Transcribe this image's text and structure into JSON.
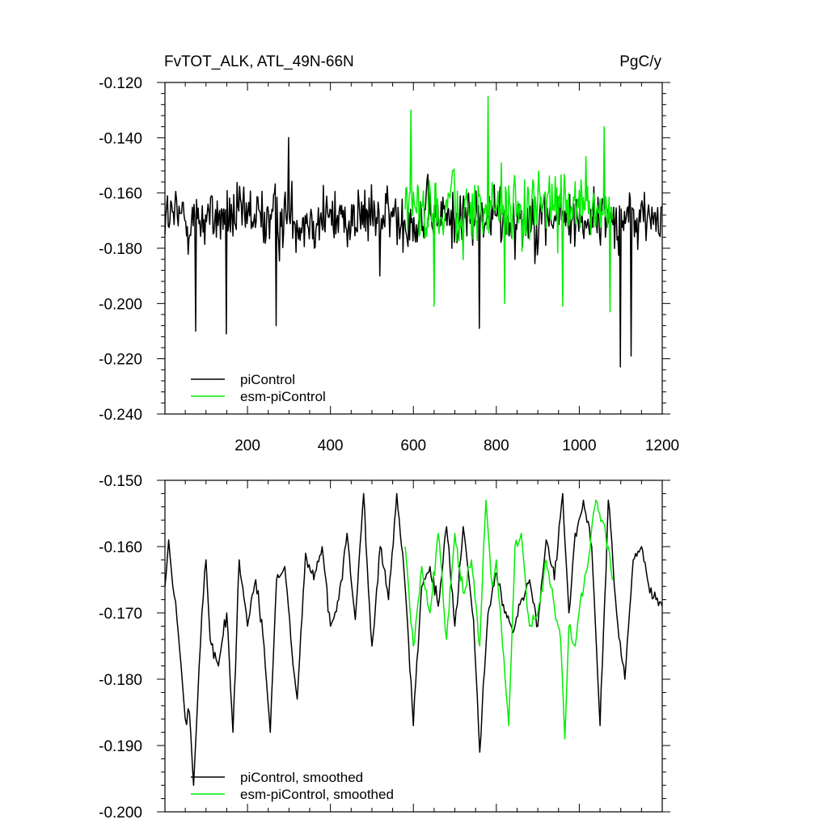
{
  "header": {
    "title": "FvTOT_ALK, ATL_49N-66N",
    "units": "PgC/y"
  },
  "chart_data": [
    {
      "type": "line",
      "title": "FvTOT_ALK, ATL_49N-66N",
      "units": "PgC/y",
      "xlim": [
        1,
        1200
      ],
      "ylim": [
        -0.24,
        -0.12
      ],
      "xticks": [
        200,
        400,
        600,
        800,
        1000,
        1200
      ],
      "xtick_labels": [
        "200",
        "400",
        "600",
        "800",
        "1000",
        "1200"
      ],
      "yticks": [
        -0.12,
        -0.14,
        -0.16,
        -0.18,
        -0.2,
        -0.22,
        -0.24
      ],
      "ytick_labels": [
        "-0.120",
        "-0.140",
        "-0.160",
        "-0.180",
        "-0.200",
        "-0.220",
        "-0.240"
      ],
      "legend_position": "bottom-left",
      "series": [
        {
          "name": "piControl",
          "color": "#000000",
          "x_start": 1,
          "x_end": 1200,
          "mean": -0.169,
          "spread": 0.011,
          "extremes": [
            [
              75,
              -0.21
            ],
            [
              150,
              -0.211
            ],
            [
              270,
              -0.208
            ],
            [
              300,
              -0.14
            ],
            [
              760,
              -0.209
            ],
            [
              1100,
              -0.223
            ],
            [
              1125,
              -0.219
            ],
            [
              520,
              -0.19
            ]
          ]
        },
        {
          "name": "esm-piControl",
          "color": "#00ee00",
          "x_start": 580,
          "x_end": 1080,
          "mean": -0.166,
          "spread": 0.012,
          "extremes": [
            [
              595,
              -0.13
            ],
            [
              780,
              -0.125
            ],
            [
              650,
              -0.201
            ],
            [
              820,
              -0.2
            ],
            [
              960,
              -0.201
            ],
            [
              1075,
              -0.203
            ],
            [
              1060,
              -0.136
            ]
          ]
        }
      ]
    },
    {
      "type": "line",
      "xlim": [
        1,
        1200
      ],
      "ylim": [
        -0.2,
        -0.15
      ],
      "xticks": [
        200,
        400,
        600,
        800,
        1000,
        1200
      ],
      "yticks": [
        -0.15,
        -0.16,
        -0.17,
        -0.18,
        -0.19,
        -0.2
      ],
      "ytick_labels": [
        "-0.150",
        "-0.160",
        "-0.170",
        "-0.180",
        "-0.190",
        "-0.200"
      ],
      "legend_position": "bottom-left",
      "series": [
        {
          "name": "piControl, smoothed",
          "color": "#000000",
          "x_start": 1,
          "x_end": 1200,
          "points": [
            [
              1,
              -0.166
            ],
            [
              10,
              -0.159
            ],
            [
              20,
              -0.166
            ],
            [
              30,
              -0.171
            ],
            [
              40,
              -0.178
            ],
            [
              50,
              -0.186
            ],
            [
              60,
              -0.185
            ],
            [
              70,
              -0.196
            ],
            [
              80,
              -0.183
            ],
            [
              90,
              -0.17
            ],
            [
              100,
              -0.162
            ],
            [
              110,
              -0.174
            ],
            [
              130,
              -0.178
            ],
            [
              150,
              -0.17
            ],
            [
              165,
              -0.188
            ],
            [
              180,
              -0.162
            ],
            [
              200,
              -0.172
            ],
            [
              220,
              -0.165
            ],
            [
              240,
              -0.175
            ],
            [
              255,
              -0.188
            ],
            [
              270,
              -0.165
            ],
            [
              290,
              -0.163
            ],
            [
              310,
              -0.178
            ],
            [
              320,
              -0.183
            ],
            [
              340,
              -0.161
            ],
            [
              360,
              -0.165
            ],
            [
              380,
              -0.16
            ],
            [
              400,
              -0.172
            ],
            [
              420,
              -0.168
            ],
            [
              440,
              -0.158
            ],
            [
              460,
              -0.171
            ],
            [
              480,
              -0.152
            ],
            [
              500,
              -0.175
            ],
            [
              520,
              -0.16
            ],
            [
              540,
              -0.168
            ],
            [
              560,
              -0.152
            ],
            [
              580,
              -0.166
            ],
            [
              600,
              -0.187
            ],
            [
              620,
              -0.166
            ],
            [
              640,
              -0.163
            ],
            [
              660,
              -0.169
            ],
            [
              680,
              -0.157
            ],
            [
              700,
              -0.172
            ],
            [
              720,
              -0.157
            ],
            [
              745,
              -0.171
            ],
            [
              760,
              -0.191
            ],
            [
              780,
              -0.17
            ],
            [
              800,
              -0.164
            ],
            [
              820,
              -0.17
            ],
            [
              840,
              -0.173
            ],
            [
              860,
              -0.168
            ],
            [
              880,
              -0.165
            ],
            [
              900,
              -0.172
            ],
            [
              920,
              -0.159
            ],
            [
              940,
              -0.165
            ],
            [
              960,
              -0.152
            ],
            [
              975,
              -0.17
            ],
            [
              990,
              -0.158
            ],
            [
              1010,
              -0.153
            ],
            [
              1030,
              -0.16
            ],
            [
              1050,
              -0.187
            ],
            [
              1070,
              -0.153
            ],
            [
              1090,
              -0.17
            ],
            [
              1110,
              -0.18
            ],
            [
              1130,
              -0.162
            ],
            [
              1150,
              -0.16
            ],
            [
              1170,
              -0.167
            ],
            [
              1185,
              -0.168
            ],
            [
              1200,
              -0.169
            ]
          ]
        },
        {
          "name": "esm-piControl, smoothed",
          "color": "#00ee00",
          "x_start": 580,
          "x_end": 1080,
          "points": [
            [
              580,
              -0.16
            ],
            [
              600,
              -0.175
            ],
            [
              620,
              -0.163
            ],
            [
              640,
              -0.17
            ],
            [
              660,
              -0.158
            ],
            [
              680,
              -0.174
            ],
            [
              700,
              -0.158
            ],
            [
              720,
              -0.167
            ],
            [
              740,
              -0.162
            ],
            [
              760,
              -0.175
            ],
            [
              775,
              -0.153
            ],
            [
              790,
              -0.166
            ],
            [
              800,
              -0.162
            ],
            [
              815,
              -0.175
            ],
            [
              830,
              -0.187
            ],
            [
              845,
              -0.16
            ],
            [
              860,
              -0.158
            ],
            [
              880,
              -0.172
            ],
            [
              900,
              -0.17
            ],
            [
              920,
              -0.162
            ],
            [
              940,
              -0.169
            ],
            [
              955,
              -0.174
            ],
            [
              965,
              -0.189
            ],
            [
              975,
              -0.172
            ],
            [
              990,
              -0.175
            ],
            [
              1005,
              -0.167
            ],
            [
              1020,
              -0.163
            ],
            [
              1040,
              -0.153
            ],
            [
              1055,
              -0.156
            ],
            [
              1070,
              -0.16
            ],
            [
              1080,
              -0.165
            ]
          ]
        }
      ]
    }
  ]
}
